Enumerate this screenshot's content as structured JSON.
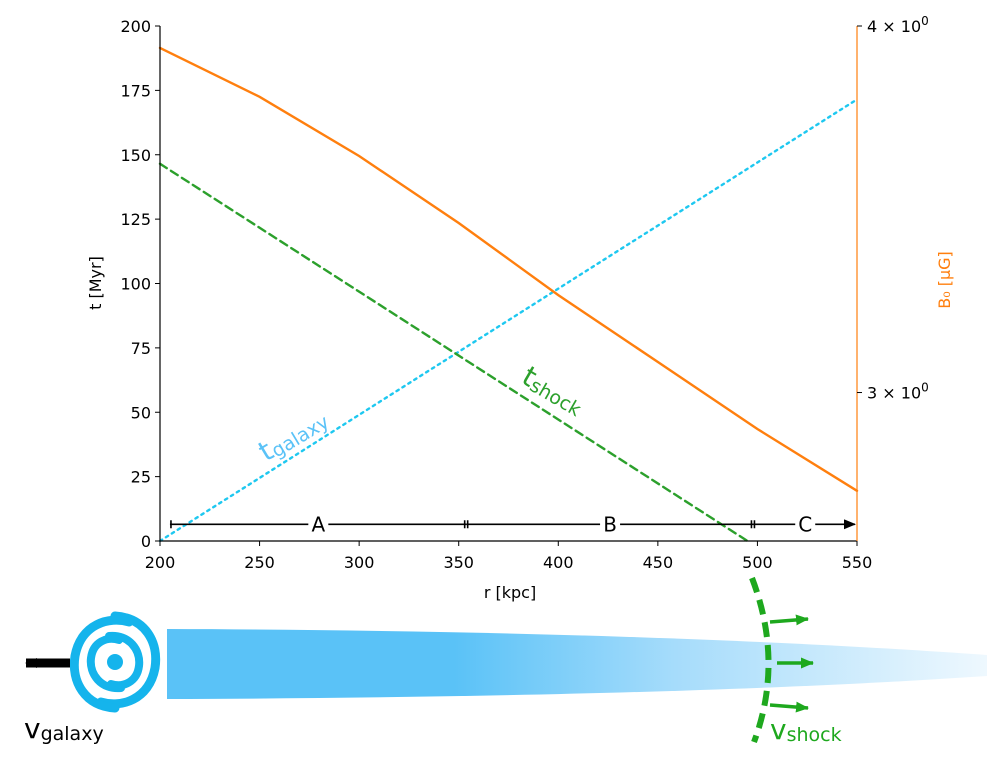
{
  "chart_data": {
    "type": "line",
    "xlabel": "r [kpc]",
    "ylabel": "t [Myr]",
    "ylabel_right": "B₀ [μG]",
    "xlim": [
      200,
      550
    ],
    "ylim": [
      0,
      200
    ],
    "x_ticks": [
      200,
      250,
      300,
      350,
      400,
      450,
      500,
      550
    ],
    "y_ticks": [
      0,
      25,
      50,
      75,
      100,
      125,
      150,
      175,
      200
    ],
    "y_right_scale": "log",
    "y_right_ticks": [
      {
        "value": 4,
        "base": "4 × 10",
        "exp": "0"
      },
      {
        "value": 3,
        "base": "3 × 10",
        "exp": "0"
      }
    ],
    "series": [
      {
        "name": "t_galaxy",
        "label_main": "t",
        "label_sub": "galaxy",
        "color": "#1ec8f0",
        "style": "dotted",
        "axis": "left",
        "x": [
          200,
          550
        ],
        "y": [
          0,
          171.5
        ]
      },
      {
        "name": "t_shock",
        "label_main": "t",
        "label_sub": "shock",
        "color": "#2ca02c",
        "style": "dashed",
        "axis": "left",
        "x": [
          200,
          495
        ],
        "y": [
          146.5,
          0
        ]
      },
      {
        "name": "B_0",
        "color": "#ff7f0e",
        "style": "solid",
        "axis": "right",
        "x": [
          200,
          250,
          300,
          350,
          400,
          450,
          500,
          550
        ],
        "y": [
          191.5,
          172.5,
          149.5,
          123.5,
          95.5,
          69.5,
          43.5,
          19.5
        ]
      }
    ],
    "regions": [
      {
        "label": "A",
        "x_start": 205,
        "x_end": 354
      },
      {
        "label": "B",
        "x_start": 354,
        "x_end": 498
      },
      {
        "label": "C",
        "x_start": 498,
        "x_end": 550
      }
    ],
    "regions_y": 6.5
  },
  "schematic": {
    "v_galaxy_main": "v",
    "v_galaxy_sub": "galaxy",
    "v_shock_main": "v",
    "v_shock_sub": "shock",
    "galaxy_color": "#15b4ec",
    "tail_color": "#5ac2f7",
    "shock_color": "#1ea81e"
  }
}
